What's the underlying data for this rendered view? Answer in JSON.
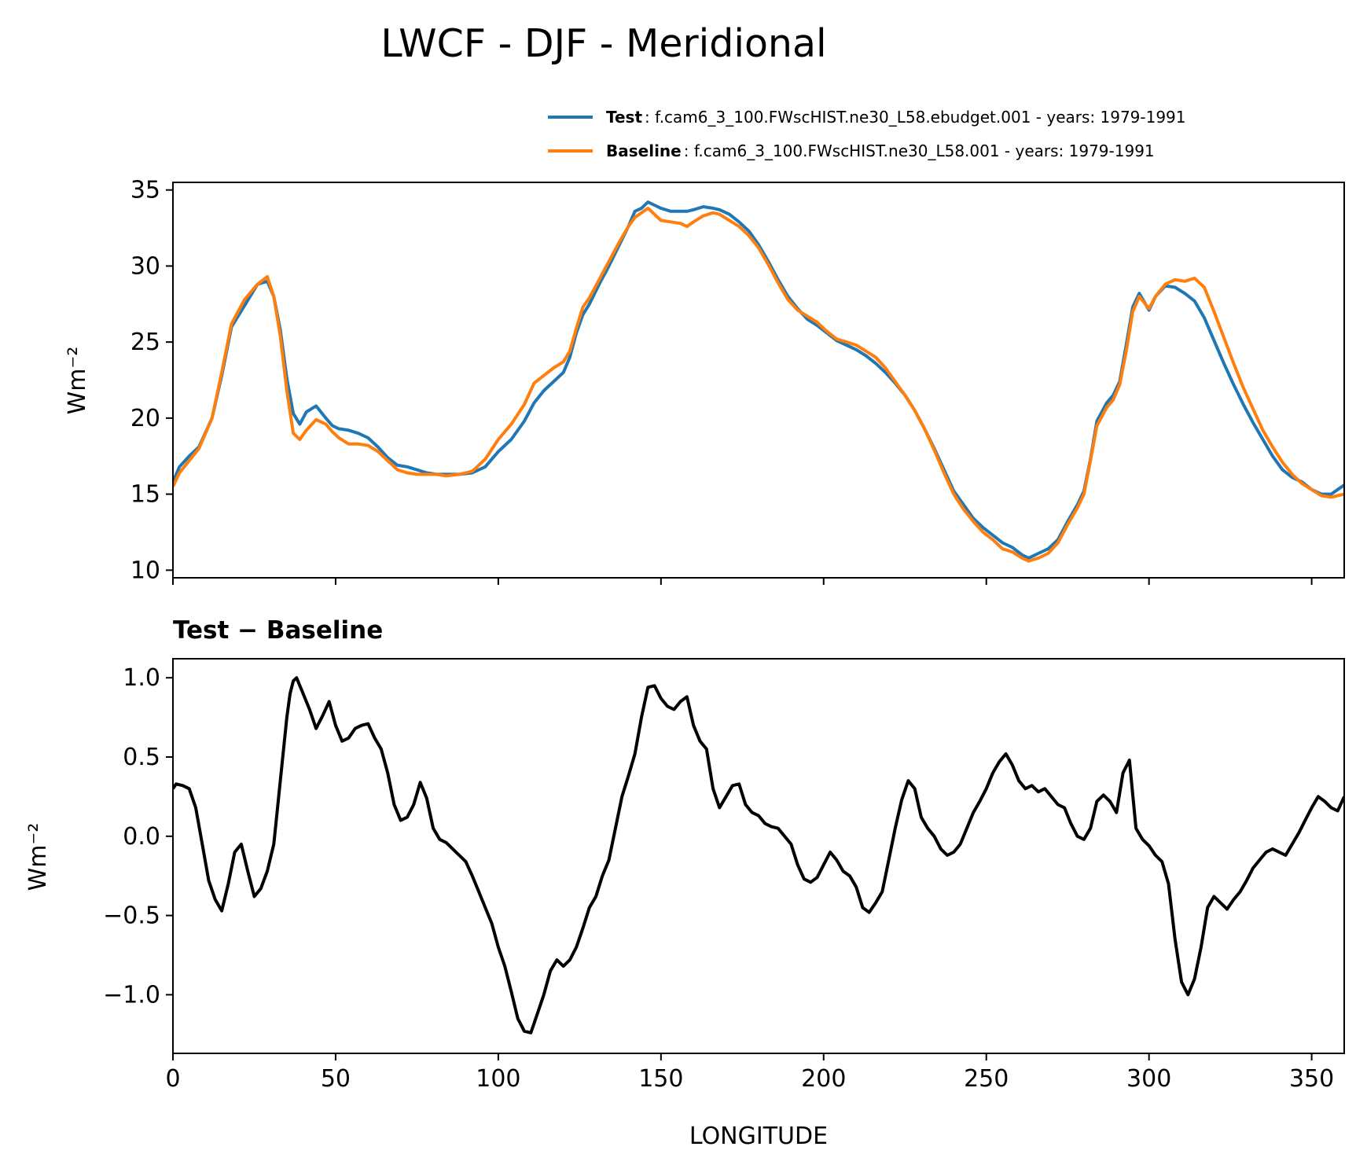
{
  "chart_data": [
    {
      "type": "line",
      "title": "LWCF - DJF - Meridional",
      "xlabel": "",
      "ylabel": "Wm⁻²",
      "xlim": [
        0,
        360
      ],
      "ylim": [
        9.5,
        35.5
      ],
      "yticks": [
        10,
        15,
        20,
        25,
        30,
        35
      ],
      "ytick_labels": [
        "10",
        "15",
        "20",
        "25",
        "30",
        "35"
      ],
      "xticks": [
        0,
        50,
        100,
        150,
        200,
        250,
        300,
        350
      ],
      "legend": {
        "location": "top-right",
        "entries": [
          {
            "name": "Test",
            "desc": ": f.cam6_3_100.FWscHIST.ne30_L58.ebudget.001 - years: 1979-1991",
            "color": "#1f77b4"
          },
          {
            "name": "Baseline",
            "desc": ": f.cam6_3_100.FWscHIST.ne30_L58.001 - years: 1979-1991",
            "color": "#ff7f0e"
          }
        ]
      },
      "series": [
        {
          "name": "Test",
          "color": "#1f77b4",
          "x": [
            0,
            2,
            5,
            8,
            12,
            15,
            18,
            22,
            26,
            29,
            31,
            33,
            35,
            37,
            39,
            41,
            44,
            47,
            49,
            51,
            54,
            57,
            60,
            63,
            66,
            69,
            72,
            75,
            78,
            81,
            84,
            88,
            92,
            96,
            100,
            104,
            108,
            111,
            114,
            117,
            120,
            122,
            124,
            126,
            128,
            131,
            134,
            137,
            140,
            142,
            144,
            146,
            148,
            150,
            153,
            156,
            158,
            160,
            163,
            166,
            168,
            171,
            174,
            177,
            180,
            183,
            186,
            189,
            192,
            195,
            198,
            201,
            204,
            207,
            210,
            213,
            216,
            219,
            222,
            225,
            228,
            231,
            234,
            237,
            240,
            243,
            246,
            249,
            252,
            255,
            258,
            261,
            263,
            266,
            269,
            272,
            275,
            278,
            280,
            282,
            284,
            287,
            289,
            291,
            293,
            295,
            297,
            300,
            302,
            305,
            308,
            311,
            314,
            317,
            320,
            323,
            326,
            329,
            332,
            335,
            338,
            341,
            344,
            347,
            350,
            353,
            356,
            358,
            360
          ],
          "y": [
            15.8,
            16.8,
            17.5,
            18.1,
            20.0,
            22.8,
            26.0,
            27.4,
            28.8,
            29.0,
            28.0,
            25.8,
            22.6,
            20.3,
            19.6,
            20.4,
            20.8,
            20.0,
            19.5,
            19.3,
            19.2,
            19.0,
            18.7,
            18.1,
            17.4,
            16.9,
            16.8,
            16.6,
            16.4,
            16.3,
            16.3,
            16.3,
            16.4,
            16.8,
            17.8,
            18.6,
            19.8,
            21.0,
            21.8,
            22.4,
            23.0,
            24.0,
            25.6,
            26.8,
            27.5,
            28.8,
            30.0,
            31.3,
            32.6,
            33.6,
            33.8,
            34.2,
            34.0,
            33.8,
            33.6,
            33.6,
            33.6,
            33.7,
            33.9,
            33.8,
            33.7,
            33.4,
            32.9,
            32.3,
            31.4,
            30.3,
            29.1,
            28.0,
            27.2,
            26.5,
            26.1,
            25.6,
            25.1,
            24.8,
            24.5,
            24.1,
            23.6,
            23.0,
            22.3,
            21.5,
            20.5,
            19.3,
            18.0,
            16.6,
            15.2,
            14.3,
            13.4,
            12.8,
            12.3,
            11.8,
            11.5,
            11.0,
            10.8,
            11.1,
            11.4,
            12.0,
            13.2,
            14.3,
            15.2,
            17.3,
            19.8,
            21.0,
            21.5,
            22.4,
            24.8,
            27.3,
            28.2,
            27.1,
            28.0,
            28.7,
            28.6,
            28.2,
            27.7,
            26.6,
            25.1,
            23.6,
            22.2,
            20.9,
            19.7,
            18.6,
            17.5,
            16.6,
            16.1,
            15.8,
            15.3,
            15.0,
            15.0,
            15.3,
            15.6
          ]
        },
        {
          "name": "Baseline",
          "color": "#ff7f0e",
          "x": [
            0,
            2,
            5,
            8,
            12,
            15,
            18,
            22,
            26,
            29,
            31,
            33,
            35,
            37,
            39,
            41,
            44,
            47,
            49,
            51,
            54,
            57,
            60,
            63,
            66,
            69,
            72,
            75,
            78,
            81,
            84,
            88,
            92,
            96,
            100,
            104,
            108,
            111,
            114,
            117,
            120,
            122,
            124,
            126,
            128,
            131,
            134,
            137,
            140,
            142,
            144,
            146,
            148,
            150,
            153,
            156,
            158,
            160,
            163,
            166,
            168,
            171,
            174,
            177,
            180,
            183,
            186,
            189,
            192,
            195,
            198,
            201,
            204,
            207,
            210,
            213,
            216,
            219,
            222,
            225,
            228,
            231,
            234,
            237,
            240,
            243,
            246,
            249,
            252,
            255,
            258,
            261,
            263,
            266,
            269,
            272,
            275,
            278,
            280,
            282,
            284,
            287,
            289,
            291,
            293,
            295,
            297,
            300,
            302,
            305,
            308,
            311,
            314,
            317,
            320,
            323,
            326,
            329,
            332,
            335,
            338,
            341,
            344,
            347,
            350,
            353,
            356,
            358,
            360
          ],
          "y": [
            15.5,
            16.4,
            17.2,
            18.0,
            20.0,
            23.0,
            26.2,
            27.8,
            28.8,
            29.3,
            28.0,
            25.4,
            21.8,
            19.0,
            18.6,
            19.2,
            19.9,
            19.6,
            19.1,
            18.7,
            18.3,
            18.3,
            18.2,
            17.8,
            17.2,
            16.6,
            16.4,
            16.3,
            16.3,
            16.3,
            16.2,
            16.3,
            16.5,
            17.3,
            18.6,
            19.6,
            20.9,
            22.3,
            22.8,
            23.3,
            23.7,
            24.4,
            25.9,
            27.3,
            27.9,
            29.1,
            30.3,
            31.5,
            32.6,
            33.2,
            33.5,
            33.8,
            33.4,
            33.0,
            32.9,
            32.8,
            32.6,
            32.9,
            33.3,
            33.5,
            33.4,
            33.0,
            32.6,
            32.0,
            31.2,
            30.1,
            28.9,
            27.8,
            27.1,
            26.7,
            26.3,
            25.7,
            25.2,
            25.0,
            24.8,
            24.4,
            24.0,
            23.3,
            22.4,
            21.5,
            20.5,
            19.3,
            17.9,
            16.4,
            15.0,
            14.0,
            13.2,
            12.5,
            12.0,
            11.4,
            11.2,
            10.8,
            10.6,
            10.8,
            11.1,
            11.8,
            13.0,
            14.1,
            15.0,
            17.2,
            19.5,
            20.7,
            21.2,
            22.2,
            24.4,
            27.0,
            28.0,
            27.2,
            28.0,
            28.8,
            29.1,
            29.0,
            29.2,
            28.6,
            27.0,
            25.3,
            23.6,
            22.0,
            20.6,
            19.2,
            18.1,
            17.1,
            16.3,
            15.7,
            15.3,
            14.9,
            14.8,
            14.9,
            15.0
          ]
        }
      ]
    },
    {
      "type": "line",
      "title": "Test − Baseline",
      "xlabel": "LONGITUDE",
      "ylabel": "Wm⁻²",
      "xlim": [
        0,
        360
      ],
      "ylim": [
        -1.37,
        1.12
      ],
      "yticks": [
        -1.0,
        -0.5,
        0.0,
        0.5,
        1.0
      ],
      "ytick_labels": [
        "−1.0",
        "−0.5",
        "0.0",
        "0.5",
        "1.0"
      ],
      "xticks": [
        0,
        50,
        100,
        150,
        200,
        250,
        300,
        350
      ],
      "xtick_labels": [
        "0",
        "50",
        "100",
        "150",
        "200",
        "250",
        "300",
        "350"
      ],
      "series": [
        {
          "name": "Test − Baseline",
          "color": "#000000",
          "x": [
            0,
            1,
            3,
            5,
            7,
            9,
            11,
            13,
            15,
            17,
            19,
            21,
            23,
            25,
            27,
            29,
            31,
            33,
            35,
            36,
            37,
            38,
            40,
            42,
            44,
            46,
            48,
            50,
            52,
            54,
            56,
            58,
            60,
            62,
            64,
            66,
            68,
            70,
            72,
            74,
            76,
            78,
            80,
            82,
            84,
            86,
            88,
            90,
            92,
            94,
            96,
            98,
            100,
            102,
            104,
            106,
            108,
            110,
            112,
            114,
            116,
            118,
            120,
            122,
            124,
            126,
            128,
            130,
            132,
            134,
            136,
            138,
            140,
            142,
            144,
            146,
            148,
            150,
            152,
            154,
            156,
            158,
            160,
            162,
            164,
            166,
            168,
            170,
            172,
            174,
            176,
            178,
            180,
            182,
            184,
            186,
            188,
            190,
            192,
            194,
            196,
            198,
            200,
            202,
            204,
            206,
            208,
            210,
            212,
            214,
            216,
            218,
            220,
            222,
            224,
            226,
            228,
            230,
            232,
            234,
            236,
            238,
            240,
            242,
            244,
            246,
            248,
            250,
            252,
            254,
            256,
            258,
            260,
            262,
            264,
            266,
            268,
            270,
            272,
            274,
            276,
            278,
            280,
            282,
            284,
            286,
            288,
            290,
            292,
            294,
            296,
            298,
            300,
            302,
            304,
            306,
            308,
            310,
            312,
            314,
            316,
            318,
            320,
            322,
            324,
            326,
            328,
            330,
            332,
            334,
            336,
            338,
            340,
            342,
            344,
            346,
            348,
            350,
            352,
            354,
            356,
            358,
            360
          ],
          "y": [
            0.3,
            0.33,
            0.32,
            0.3,
            0.18,
            -0.05,
            -0.28,
            -0.4,
            -0.47,
            -0.3,
            -0.1,
            -0.05,
            -0.22,
            -0.38,
            -0.33,
            -0.22,
            -0.05,
            0.35,
            0.75,
            0.9,
            0.98,
            1.0,
            0.9,
            0.8,
            0.68,
            0.76,
            0.85,
            0.7,
            0.6,
            0.62,
            0.68,
            0.7,
            0.71,
            0.62,
            0.55,
            0.4,
            0.2,
            0.1,
            0.12,
            0.2,
            0.34,
            0.24,
            0.05,
            -0.02,
            -0.04,
            -0.08,
            -0.12,
            -0.16,
            -0.25,
            -0.35,
            -0.45,
            -0.55,
            -0.7,
            -0.82,
            -0.98,
            -1.15,
            -1.23,
            -1.24,
            -1.12,
            -1.0,
            -0.85,
            -0.78,
            -0.82,
            -0.78,
            -0.7,
            -0.58,
            -0.45,
            -0.38,
            -0.25,
            -0.15,
            0.05,
            0.25,
            0.38,
            0.52,
            0.75,
            0.94,
            0.95,
            0.87,
            0.82,
            0.8,
            0.85,
            0.88,
            0.7,
            0.6,
            0.55,
            0.3,
            0.18,
            0.25,
            0.32,
            0.33,
            0.2,
            0.15,
            0.13,
            0.08,
            0.06,
            0.05,
            0.0,
            -0.05,
            -0.18,
            -0.27,
            -0.29,
            -0.26,
            -0.18,
            -0.1,
            -0.15,
            -0.22,
            -0.25,
            -0.32,
            -0.45,
            -0.48,
            -0.42,
            -0.35,
            -0.15,
            0.05,
            0.23,
            0.35,
            0.3,
            0.12,
            0.05,
            0.0,
            -0.08,
            -0.12,
            -0.1,
            -0.05,
            0.05,
            0.15,
            0.22,
            0.3,
            0.4,
            0.47,
            0.52,
            0.45,
            0.35,
            0.3,
            0.32,
            0.28,
            0.3,
            0.25,
            0.2,
            0.18,
            0.08,
            0.0,
            -0.02,
            0.05,
            0.22,
            0.26,
            0.22,
            0.15,
            0.4,
            0.48,
            0.05,
            -0.02,
            -0.06,
            -0.12,
            -0.16,
            -0.3,
            -0.65,
            -0.92,
            -1.0,
            -0.9,
            -0.7,
            -0.45,
            -0.38,
            -0.42,
            -0.46,
            -0.4,
            -0.35,
            -0.28,
            -0.2,
            -0.15,
            -0.1,
            -0.08,
            -0.1,
            -0.12,
            -0.05,
            0.02,
            0.1,
            0.18,
            0.25,
            0.22,
            0.18,
            0.16,
            0.25
          ]
        }
      ]
    }
  ]
}
